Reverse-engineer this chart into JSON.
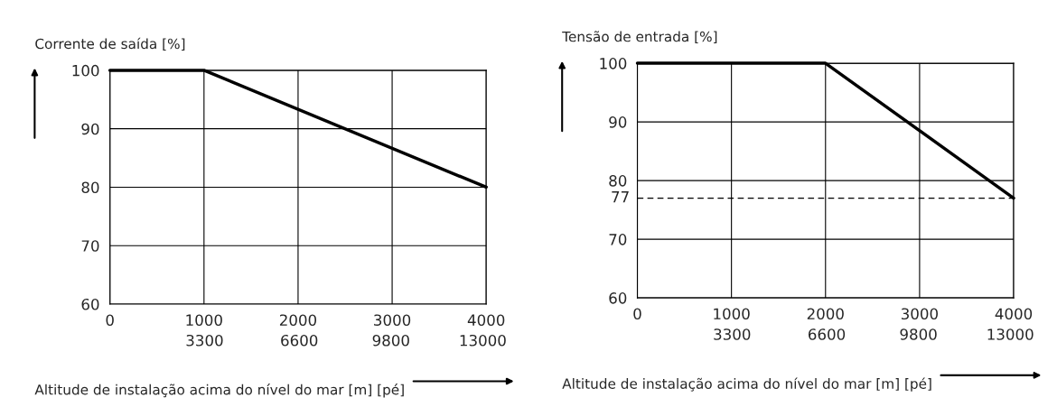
{
  "chart_data": [
    {
      "type": "line",
      "ylabel": "Corrente de saída [%]",
      "xlabel": "Altitude de instalação acima do nível do mar [m] [pé]",
      "x": [
        0,
        1000,
        4000
      ],
      "x2lim": [
        0,
        13120
      ],
      "x2ticks": [
        3300,
        6600,
        9800,
        13000
      ],
      "series": [
        {
          "color": "#000000",
          "values": [
            100,
            100,
            80
          ]
        }
      ],
      "xlim": [
        0,
        4000
      ],
      "ylim": [
        60,
        100
      ],
      "xticks": [
        0,
        1000,
        2000,
        3000,
        4000
      ],
      "yticks": [
        60,
        70,
        80,
        90,
        100
      ],
      "grid": true,
      "legend": false,
      "marker": "none",
      "line_style": "solid"
    },
    {
      "type": "line",
      "ylabel": "Tensão de entrada [%]",
      "xlabel": "Altitude de instalação acima do nível do mar [m] [pé]",
      "x": [
        0,
        2000,
        4000
      ],
      "x2lim": [
        0,
        13120
      ],
      "x2ticks": [
        3300,
        6600,
        9800,
        13000
      ],
      "series": [
        {
          "color": "#000000",
          "values": [
            100,
            100,
            77
          ]
        }
      ],
      "xlim": [
        0,
        4000
      ],
      "ylim": [
        60,
        100
      ],
      "xticks": [
        0,
        1000,
        2000,
        3000,
        4000
      ],
      "yticks": [
        60,
        70,
        80,
        90,
        100
      ],
      "ref_lines": [
        {
          "axis": "y",
          "value": 77,
          "label": "77",
          "color": "#000000",
          "line_style": "dashed"
        }
      ],
      "grid": true,
      "legend": false,
      "marker": "none",
      "line_style": "solid"
    }
  ]
}
